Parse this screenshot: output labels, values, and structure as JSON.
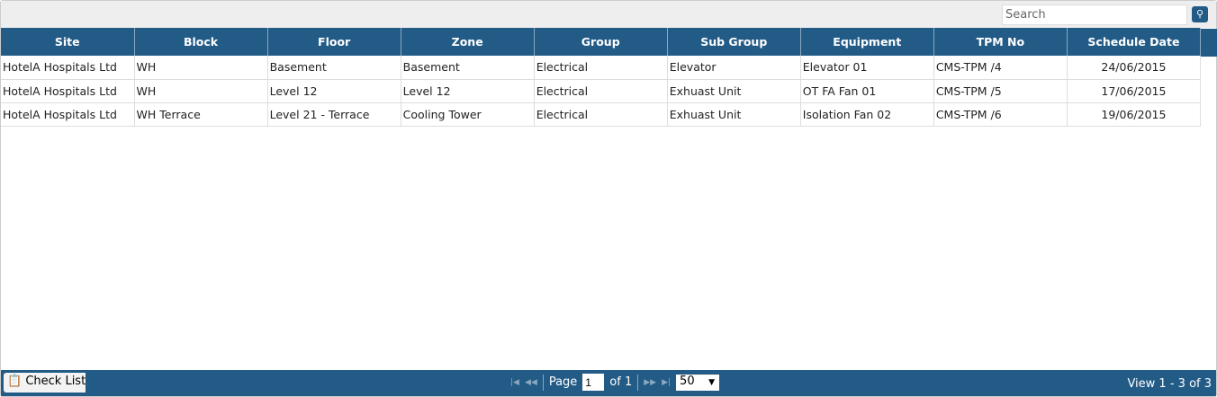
{
  "search": {
    "placeholder": "Search",
    "icon": "search-icon"
  },
  "columns": [
    "Site",
    "Block",
    "Floor",
    "Zone",
    "Group",
    "Sub Group",
    "Equipment",
    "TPM No",
    "Schedule Date"
  ],
  "rows": [
    [
      "HotelA Hospitals Ltd",
      "WH",
      "Basement",
      "Basement",
      "Electrical",
      "Elevator",
      "Elevator 01",
      "CMS-TPM /4",
      "24/06/2015"
    ],
    [
      "HotelA Hospitals Ltd",
      "WH",
      "Level 12",
      "Level 12",
      "Electrical",
      "Exhuast Unit",
      "OT FA Fan 01",
      "CMS-TPM /5",
      "17/06/2015"
    ],
    [
      "HotelA Hospitals Ltd",
      "WH Terrace",
      "Level 21 - Terrace",
      "Cooling Tower",
      "Electrical",
      "Exhuast Unit",
      "Isolation Fan 02",
      "CMS-TPM /6",
      "19/06/2015"
    ]
  ],
  "footer": {
    "checklist_label": "Check List",
    "page_label": "Page",
    "page_value": "1",
    "of_label": "of 1",
    "page_size": "50",
    "view_text": "View 1 - 3 of 3"
  },
  "colors": {
    "header": "#235b87"
  }
}
